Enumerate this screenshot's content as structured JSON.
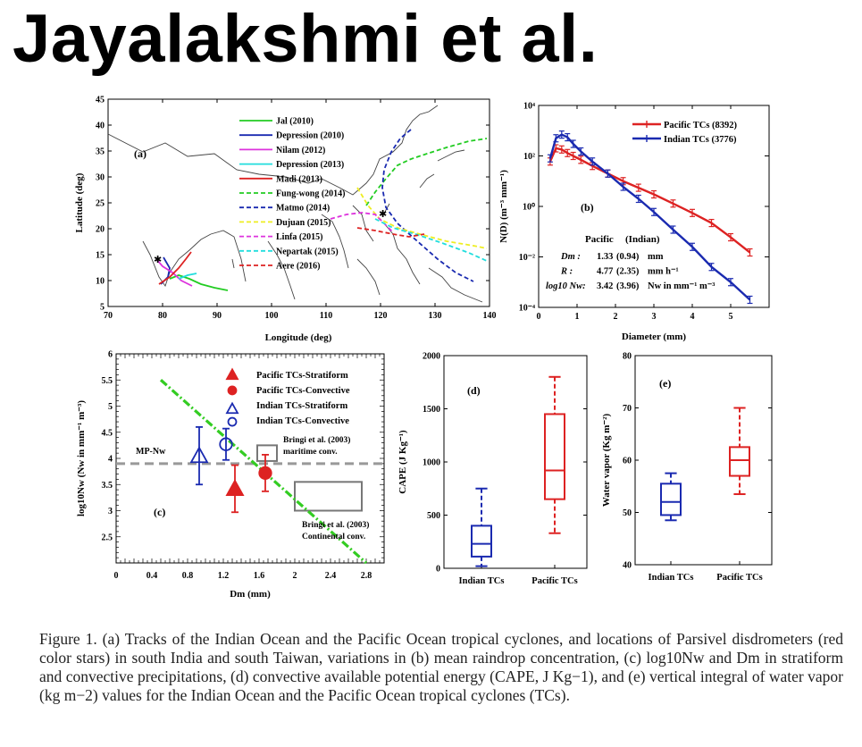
{
  "title": "Jayalakshmi et al.",
  "caption": "Figure 1. (a) Tracks of the Indian Ocean and the Pacific Ocean tropical cyclones, and locations of Parsivel disdrometers (red color stars) in south India and south Taiwan, variations in (b) mean raindrop concentration, (c) log10Nw and Dm in stratiform and convective precipitations, (d) convective available potential energy (CAPE, J Kg−1), and (e) vertical integral of water vapor (kg m−2) values for the Indian Ocean and the Pacific Ocean tropical cyclones (TCs).",
  "panels": {
    "a": {
      "label": "(a)",
      "xlabel": "Longitude (deg)",
      "ylabel": "Latitude (deg)",
      "xticks": [
        "70",
        "80",
        "90",
        "100",
        "110",
        "120",
        "130",
        "140"
      ],
      "yticks": [
        "5",
        "10",
        "15",
        "20",
        "25",
        "30",
        "35",
        "40",
        "45"
      ],
      "legend": [
        {
          "name": "Jal (2010)",
          "color": "#22cc22",
          "dash": "solid"
        },
        {
          "name": "Depression (2010)",
          "color": "#1a2ab0",
          "dash": "solid"
        },
        {
          "name": "Nilam (2012)",
          "color": "#dd33dd",
          "dash": "solid"
        },
        {
          "name": "Depression (2013)",
          "color": "#22dddd",
          "dash": "solid"
        },
        {
          "name": "Madi (2013)",
          "color": "#dd2222",
          "dash": "solid"
        },
        {
          "name": "Fung-wong (2014)",
          "color": "#22cc22",
          "dash": "dashed"
        },
        {
          "name": "Matmo (2014)",
          "color": "#1a2ab0",
          "dash": "dashed"
        },
        {
          "name": "Dujuan (2015)",
          "color": "#eeee22",
          "dash": "dashed"
        },
        {
          "name": "Linfa (2015)",
          "color": "#dd33dd",
          "dash": "dashed"
        },
        {
          "name": "Nepartak (2015)",
          "color": "#22dddd",
          "dash": "dashed"
        },
        {
          "name": "Aere (2016)",
          "color": "#dd2222",
          "dash": "dashed"
        }
      ]
    },
    "b": {
      "label": "(b)",
      "xlabel": "Diameter (mm)",
      "ylabel": "N(D) (m⁻³ mm⁻¹)",
      "xticks": [
        "0",
        "1",
        "2",
        "3",
        "4",
        "5"
      ],
      "yticks": [
        "10⁻⁴",
        "10⁻²",
        "10⁰",
        "10²",
        "10⁴"
      ],
      "legend": [
        {
          "name": "Pacific TCs (8392)",
          "color": "#dd2222"
        },
        {
          "name": "Indian TCs (3776)",
          "color": "#1a2ab0"
        }
      ],
      "stats_header": {
        "pacific": "Pacific",
        "indian": "(Indian)"
      },
      "stats": [
        {
          "label": "Dm :",
          "pacific": "1.33",
          "indian": "(0.94)",
          "unit": "mm"
        },
        {
          "label": "R :",
          "pacific": "4.77",
          "indian": "(2.35)",
          "unit": "mm h⁻¹"
        },
        {
          "label": "log10 Nw:",
          "pacific": "3.42",
          "indian": "(3.96)",
          "unit": "Nw in mm⁻¹ m⁻³"
        }
      ]
    },
    "c": {
      "label": "(c)",
      "xlabel": "Dm (mm)",
      "ylabel": "log10Nw (Nw in mm⁻¹ m⁻³)",
      "xticks": [
        "0",
        "0.4",
        "0.8",
        "1.2",
        "1.6",
        "2",
        "2.4",
        "2.8"
      ],
      "yticks": [
        "2.5",
        "3",
        "3.5",
        "4",
        "4.5",
        "5",
        "5.5",
        "6"
      ],
      "legend": [
        "Pacific TCs-Stratiform",
        "Pacific TCs-Convective",
        "Indian TCs-Stratiform",
        "Indian TCs-Convective"
      ],
      "mp_label": "MP-Nw",
      "box1_label": [
        "Bringi et al. (2003)",
        "maritime conv."
      ],
      "box2_label": [
        "Bringi et al. (2003)",
        "Continental conv."
      ]
    },
    "d": {
      "label": "(d)",
      "ylabel": "CAPE (J Kg⁻¹)",
      "yticks": [
        "0",
        "500",
        "1000",
        "1500",
        "2000"
      ],
      "categories": [
        "Indian TCs",
        "Pacific TCs"
      ]
    },
    "e": {
      "label": "(e)",
      "ylabel": "Water vapor (Kg m⁻²)",
      "yticks": [
        "40",
        "50",
        "60",
        "70",
        "80"
      ],
      "categories": [
        "Indian TCs",
        "Pacific TCs"
      ]
    }
  },
  "chart_data": [
    {
      "type": "line",
      "panel": "b",
      "xlabel": "Diameter (mm)",
      "ylabel": "N(D) (m-3 mm-1)",
      "yscale": "log",
      "xlim": [
        0,
        6
      ],
      "ylim": [
        0.0001,
        10000
      ],
      "series": [
        {
          "name": "Pacific TCs (8392)",
          "x": [
            0.3,
            0.45,
            0.6,
            0.75,
            0.9,
            1.1,
            1.4,
            1.8,
            2.2,
            2.6,
            3.0,
            3.5,
            4.0,
            4.5,
            5.0,
            5.5
          ],
          "y": [
            60,
            200,
            180,
            130,
            100,
            70,
            40,
            20,
            10,
            5.5,
            3,
            1.3,
            0.55,
            0.22,
            0.06,
            0.015
          ]
        },
        {
          "name": "Indian TCs (3776)",
          "x": [
            0.3,
            0.45,
            0.6,
            0.75,
            0.9,
            1.1,
            1.4,
            1.8,
            2.2,
            2.6,
            3.0,
            3.5,
            4.0,
            4.5,
            5.0,
            5.5
          ],
          "y": [
            80,
            500,
            700,
            550,
            300,
            150,
            60,
            20,
            6,
            2,
            0.6,
            0.12,
            0.025,
            0.004,
            0.001,
            0.0002
          ]
        }
      ]
    },
    {
      "type": "scatter",
      "panel": "c",
      "xlim": [
        0,
        3
      ],
      "ylim": [
        2,
        6
      ],
      "mp_nw": 3.9,
      "points": [
        {
          "series": "Pacific TCs-Stratiform",
          "x": 1.3,
          "y": 5.6
        },
        {
          "series": "Pacific TCs-Convective",
          "x": 1.3,
          "y": 5.3
        },
        {
          "series": "Indian TCs-Stratiform",
          "x": 1.3,
          "y": 4.95
        },
        {
          "series": "Indian TCs-Convective",
          "x": 1.3,
          "y": 4.7
        },
        {
          "series": "Indian TCs-Stratiform",
          "x": 0.93,
          "y": 4.05,
          "err": 0.55
        },
        {
          "series": "Indian TCs-Convective",
          "x": 1.23,
          "y": 4.27,
          "err": 0.3
        },
        {
          "series": "Pacific TCs-Stratiform",
          "x": 1.33,
          "y": 3.42,
          "err": 0.45
        },
        {
          "series": "Pacific TCs-Convective",
          "x": 1.67,
          "y": 3.72,
          "err": 0.35
        }
      ],
      "fit_line": {
        "x": [
          0.5,
          2.8
        ],
        "y": [
          5.5,
          2.0
        ]
      }
    },
    {
      "type": "box",
      "panel": "d",
      "ylabel": "CAPE (J Kg-1)",
      "ylim": [
        0,
        2000
      ],
      "categories": [
        "Indian TCs",
        "Pacific TCs"
      ],
      "boxes": [
        {
          "min": 20,
          "q1": 110,
          "median": 230,
          "q3": 400,
          "max": 750,
          "color": "#1a2ab0"
        },
        {
          "min": 330,
          "q1": 650,
          "median": 920,
          "q3": 1450,
          "max": 1800,
          "color": "#dd2222"
        }
      ]
    },
    {
      "type": "box",
      "panel": "e",
      "ylabel": "Water vapor (Kg m-2)",
      "ylim": [
        40,
        80
      ],
      "categories": [
        "Indian TCs",
        "Pacific TCs"
      ],
      "boxes": [
        {
          "min": 48.5,
          "q1": 49.5,
          "median": 52,
          "q3": 55.5,
          "max": 57.5,
          "color": "#1a2ab0"
        },
        {
          "min": 53.5,
          "q1": 57,
          "median": 60,
          "q3": 62.5,
          "max": 70,
          "color": "#dd2222"
        }
      ]
    }
  ]
}
